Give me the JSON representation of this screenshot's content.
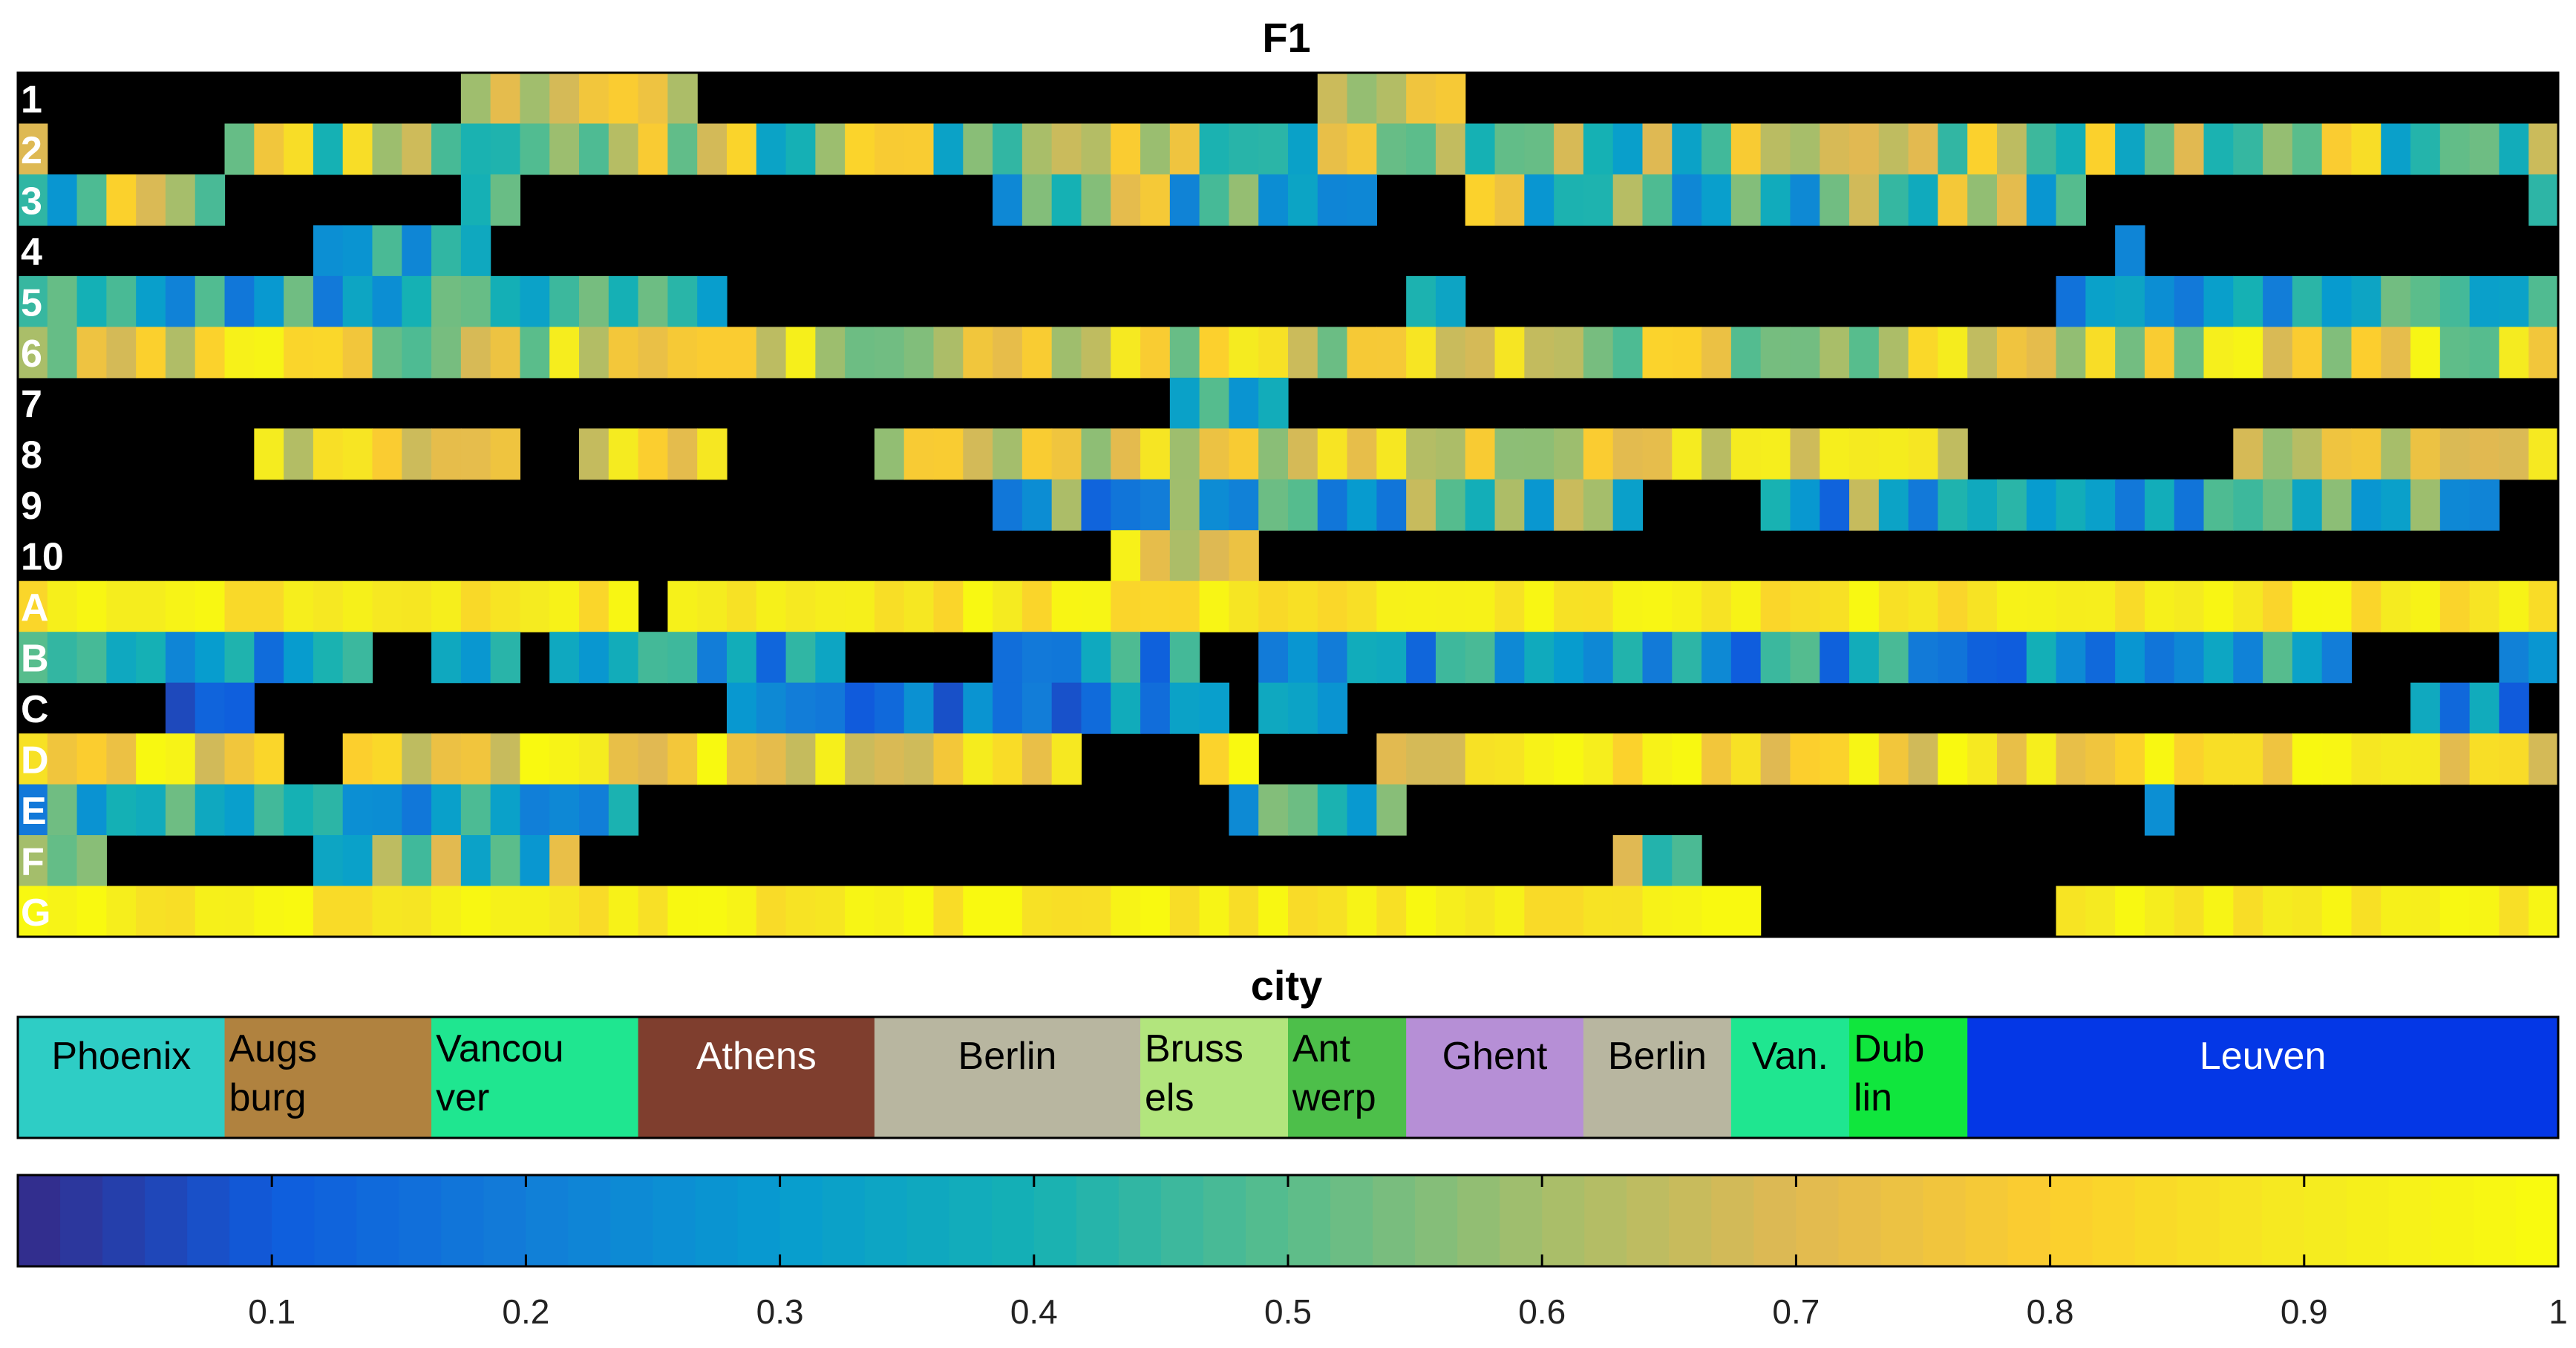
{
  "chart_data": {
    "type": "heatmap",
    "title": "F1",
    "rows": [
      "1",
      "2",
      "3",
      "4",
      "5",
      "6",
      "7",
      "8",
      "9",
      "10",
      "A",
      "B",
      "C",
      "D",
      "E",
      "F",
      "G"
    ],
    "num_columns": 86,
    "heatmap_source": "procedural-approximation",
    "missing_value_color": "#000000",
    "city_bar": {
      "title": "city",
      "segments": [
        {
          "label": "Phoenix",
          "lines": [
            "Phoenix"
          ],
          "start": 0,
          "end": 7,
          "color": "#2ECDC5",
          "text_color": "#000000"
        },
        {
          "label": "Augsburg",
          "lines": [
            "Augs",
            "burg"
          ],
          "start": 7,
          "end": 14,
          "color": "#B0823F",
          "text_color": "#000000"
        },
        {
          "label": "Vancouver",
          "lines": [
            "Vancou",
            "ver"
          ],
          "start": 14,
          "end": 21,
          "color": "#1FE690",
          "text_color": "#000000"
        },
        {
          "label": "Athens",
          "lines": [
            "Athens"
          ],
          "start": 21,
          "end": 29,
          "color": "#7F3E2E",
          "text_color": "#FFFFFF"
        },
        {
          "label": "Berlin",
          "lines": [
            "Berlin"
          ],
          "start": 29,
          "end": 38,
          "color": "#B8B6A0",
          "text_color": "#000000"
        },
        {
          "label": "Brussels",
          "lines": [
            "Bruss",
            "els"
          ],
          "start": 38,
          "end": 43,
          "color": "#B2E57D",
          "text_color": "#000000"
        },
        {
          "label": "Antwerp",
          "lines": [
            "Ant",
            "werp"
          ],
          "start": 43,
          "end": 47,
          "color": "#4DBF4A",
          "text_color": "#000000"
        },
        {
          "label": "Ghent",
          "lines": [
            "Ghent"
          ],
          "start": 47,
          "end": 53,
          "color": "#B68FD6",
          "text_color": "#000000"
        },
        {
          "label": "Berlin",
          "lines": [
            "Berlin"
          ],
          "start": 53,
          "end": 58,
          "color": "#B8B6A0",
          "text_color": "#000000"
        },
        {
          "label": "Van.",
          "lines": [
            "Van."
          ],
          "start": 58,
          "end": 62,
          "color": "#1FE690",
          "text_color": "#000000"
        },
        {
          "label": "Dublin",
          "lines": [
            "Dub",
            "lin"
          ],
          "start": 62,
          "end": 66,
          "color": "#10E63D",
          "text_color": "#000000"
        },
        {
          "label": "Leuven",
          "lines": [
            "Leuven"
          ],
          "start": 66,
          "end": 86,
          "color": "#0437E6",
          "text_color": "#FFFFFF"
        }
      ]
    },
    "colorbar": {
      "range": [
        0,
        1
      ],
      "colormap": "parula",
      "ticks": [
        0.1,
        0.2,
        0.3,
        0.4,
        0.5,
        0.6,
        0.7,
        0.8,
        0.9,
        1
      ],
      "tick_labels": [
        "0.1",
        "0.2",
        "0.3",
        "0.4",
        "0.5",
        "0.6",
        "0.7",
        "0.8",
        "0.9",
        "1"
      ]
    },
    "row_profiles": [
      {
        "row": "1",
        "density": 0.1,
        "bias": 0.68,
        "spread": 0.12
      },
      {
        "row": "2",
        "density": 0.88,
        "bias": 0.58,
        "spread": 0.28
      },
      {
        "row": "3",
        "density": 0.7,
        "bias": 0.52,
        "spread": 0.3
      },
      {
        "row": "4",
        "density": 0.28,
        "bias": 0.32,
        "spread": 0.16
      },
      {
        "row": "5",
        "density": 0.45,
        "bias": 0.34,
        "spread": 0.2
      },
      {
        "row": "6",
        "density": 0.95,
        "bias": 0.72,
        "spread": 0.24
      },
      {
        "row": "7",
        "density": 0.03,
        "bias": 0.45,
        "spread": 0.2
      },
      {
        "row": "8",
        "density": 0.82,
        "bias": 0.74,
        "spread": 0.18
      },
      {
        "row": "9",
        "density": 0.42,
        "bias": 0.4,
        "spread": 0.28
      },
      {
        "row": "10",
        "density": 0.16,
        "bias": 0.78,
        "spread": 0.18
      },
      {
        "row": "A",
        "density": 0.94,
        "bias": 0.9,
        "spread": 0.08
      },
      {
        "row": "B",
        "density": 0.78,
        "bias": 0.3,
        "spread": 0.2
      },
      {
        "row": "C",
        "density": 0.2,
        "bias": 0.22,
        "spread": 0.16
      },
      {
        "row": "D",
        "density": 0.9,
        "bias": 0.82,
        "spread": 0.18
      },
      {
        "row": "E",
        "density": 0.45,
        "bias": 0.38,
        "spread": 0.2
      },
      {
        "row": "F",
        "density": 0.2,
        "bias": 0.48,
        "spread": 0.28
      },
      {
        "row": "G",
        "density": 0.96,
        "bias": 0.92,
        "spread": 0.08
      }
    ]
  }
}
